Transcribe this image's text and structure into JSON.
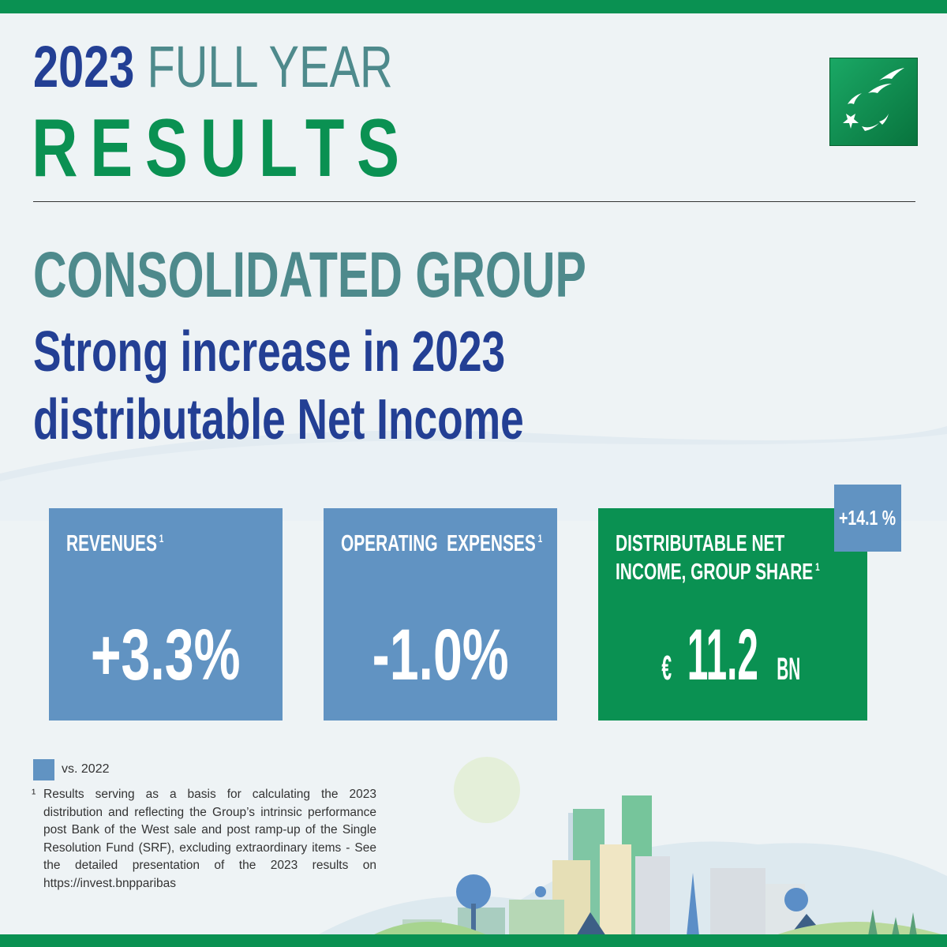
{
  "header": {
    "year": "2023",
    "title_rest": "FULL YEAR",
    "title_big": "RESULTS"
  },
  "logo": {
    "icon": "stars-logo-icon"
  },
  "main": {
    "heading": "CONSOLIDATED GROUP",
    "subheading_line1": "Strong increase in 2023",
    "subheading_line2": "distributable Net Income"
  },
  "cards": [
    {
      "label": "REVENUES",
      "sup": "1",
      "value": "+3.3%"
    },
    {
      "label": "OPERATING  EXPENSES",
      "sup": "1",
      "value": "-1.0%"
    },
    {
      "label_line1": "DISTRIBUTABLE NET",
      "label_line2": "INCOME, GROUP SHARE",
      "sup": "1",
      "value_currency": "€",
      "value_num": "11.2",
      "value_unit": "BN",
      "badge": "+14.1 %"
    }
  ],
  "legend": {
    "text": "vs. 2022",
    "color": "#6193c2"
  },
  "footnote": {
    "mark": "¹",
    "text": "Results serving as a basis for calculating the 2023 distribution and reflecting the Group’s intrinsic performance post Bank of the West sale and post ramp-up of the Single Resolution Fund (SRF), excluding extraordinary items - See the detailed presentation of the 2023 results on https://invest.bnpparibas"
  },
  "colors": {
    "green": "#0a9152",
    "blue": "#233f94",
    "teal": "#4e8a8c",
    "card_blue": "#6193c2"
  }
}
